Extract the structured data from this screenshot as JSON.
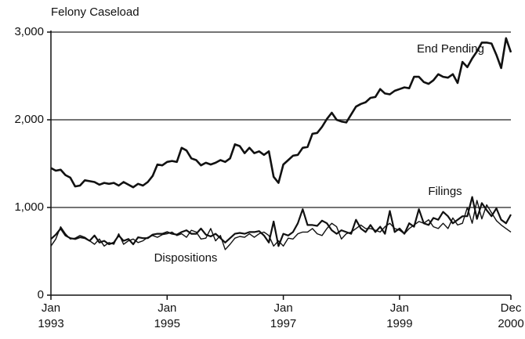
{
  "chart_data": {
    "type": "line",
    "title": "Felony Caseload",
    "x": [
      "1993-01",
      "1993-02",
      "1993-03",
      "1993-04",
      "1993-05",
      "1993-06",
      "1993-07",
      "1993-08",
      "1993-09",
      "1993-10",
      "1993-11",
      "1993-12",
      "1994-01",
      "1994-02",
      "1994-03",
      "1994-04",
      "1994-05",
      "1994-06",
      "1994-07",
      "1994-08",
      "1994-09",
      "1994-10",
      "1994-11",
      "1994-12",
      "1995-01",
      "1995-02",
      "1995-03",
      "1995-04",
      "1995-05",
      "1995-06",
      "1995-07",
      "1995-08",
      "1995-09",
      "1995-10",
      "1995-11",
      "1995-12",
      "1996-01",
      "1996-02",
      "1996-03",
      "1996-04",
      "1996-05",
      "1996-06",
      "1996-07",
      "1996-08",
      "1996-09",
      "1996-10",
      "1996-11",
      "1996-12",
      "1997-01",
      "1997-02",
      "1997-03",
      "1997-04",
      "1997-05",
      "1997-06",
      "1997-07",
      "1997-08",
      "1997-09",
      "1997-10",
      "1997-11",
      "1997-12",
      "1998-01",
      "1998-02",
      "1998-03",
      "1998-04",
      "1998-05",
      "1998-06",
      "1998-07",
      "1998-08",
      "1998-09",
      "1998-10",
      "1998-11",
      "1998-12",
      "1999-01",
      "1999-02",
      "1999-03",
      "1999-04",
      "1999-05",
      "1999-06",
      "1999-07",
      "1999-08",
      "1999-09",
      "1999-10",
      "1999-11",
      "1999-12",
      "2000-01",
      "2000-02",
      "2000-03",
      "2000-04",
      "2000-05",
      "2000-06",
      "2000-07",
      "2000-08",
      "2000-09",
      "2000-10",
      "2000-11",
      "2000-12"
    ],
    "xticks": [
      {
        "value": "1993-01",
        "label": [
          "Jan",
          "1993"
        ]
      },
      {
        "value": "1995-01",
        "label": [
          "Jan",
          "1995"
        ]
      },
      {
        "value": "1997-01",
        "label": [
          "Jan",
          "1997"
        ]
      },
      {
        "value": "1999-01",
        "label": [
          "Jan",
          "1999"
        ]
      },
      {
        "value": "2000-12",
        "label": [
          "Dec",
          "2000"
        ]
      }
    ],
    "ylim": [
      0,
      3000
    ],
    "yticks": [
      0,
      {
        "value": 1000,
        "label": "1,000"
      },
      {
        "value": 2000,
        "label": "2,000"
      },
      {
        "value": 3000,
        "label": "3,000"
      }
    ],
    "grid": true,
    "series": [
      {
        "name": "End Pending",
        "color": "#111111",
        "values": [
          1450,
          1420,
          1430,
          1370,
          1340,
          1240,
          1250,
          1310,
          1300,
          1290,
          1260,
          1280,
          1270,
          1280,
          1250,
          1290,
          1260,
          1230,
          1270,
          1250,
          1290,
          1360,
          1490,
          1480,
          1520,
          1530,
          1520,
          1680,
          1650,
          1560,
          1540,
          1480,
          1510,
          1490,
          1510,
          1540,
          1520,
          1560,
          1720,
          1700,
          1620,
          1680,
          1620,
          1640,
          1600,
          1640,
          1350,
          1280,
          1490,
          1540,
          1590,
          1600,
          1680,
          1690,
          1840,
          1850,
          1920,
          2010,
          2080,
          2000,
          1980,
          1970,
          2060,
          2150,
          2180,
          2200,
          2250,
          2260,
          2350,
          2300,
          2290,
          2330,
          2350,
          2370,
          2360,
          2490,
          2490,
          2430,
          2410,
          2450,
          2520,
          2490,
          2480,
          2520,
          2420,
          2660,
          2600,
          2700,
          2780,
          2880,
          2880,
          2870,
          2740,
          2590,
          2930,
          2770
        ]
      },
      {
        "name": "Filings",
        "color": "#111111",
        "values": [
          640,
          690,
          760,
          680,
          650,
          640,
          660,
          650,
          620,
          680,
          600,
          620,
          580,
          600,
          680,
          620,
          640,
          580,
          660,
          650,
          650,
          690,
          700,
          700,
          720,
          700,
          690,
          720,
          740,
          700,
          700,
          760,
          690,
          670,
          700,
          650,
          600,
          650,
          700,
          710,
          700,
          720,
          720,
          730,
          680,
          600,
          840,
          560,
          700,
          680,
          720,
          820,
          980,
          800,
          800,
          790,
          850,
          820,
          740,
          700,
          740,
          720,
          700,
          860,
          760,
          720,
          800,
          720,
          780,
          700,
          960,
          720,
          760,
          700,
          820,
          780,
          980,
          820,
          800,
          880,
          860,
          950,
          900,
          820,
          860,
          900,
          900,
          1120,
          870,
          1050,
          970,
          900,
          990,
          860,
          820,
          920
        ]
      },
      {
        "name": "Dispositions",
        "color": "#111111",
        "values": [
          560,
          640,
          780,
          700,
          640,
          650,
          680,
          660,
          620,
          580,
          640,
          560,
          600,
          580,
          700,
          580,
          620,
          640,
          600,
          620,
          660,
          680,
          660,
          690,
          700,
          720,
          680,
          700,
          660,
          740,
          720,
          640,
          650,
          760,
          620,
          680,
          520,
          580,
          650,
          670,
          660,
          700,
          660,
          700,
          720,
          680,
          560,
          620,
          560,
          650,
          640,
          700,
          720,
          720,
          760,
          700,
          680,
          760,
          820,
          780,
          640,
          700,
          720,
          760,
          800,
          760,
          760,
          740,
          720,
          780,
          820,
          760,
          740,
          700,
          760,
          800,
          840,
          820,
          860,
          780,
          760,
          820,
          760,
          880,
          800,
          820,
          1000,
          820,
          1080,
          870,
          1030,
          940,
          850,
          800,
          760,
          720
        ]
      }
    ]
  }
}
